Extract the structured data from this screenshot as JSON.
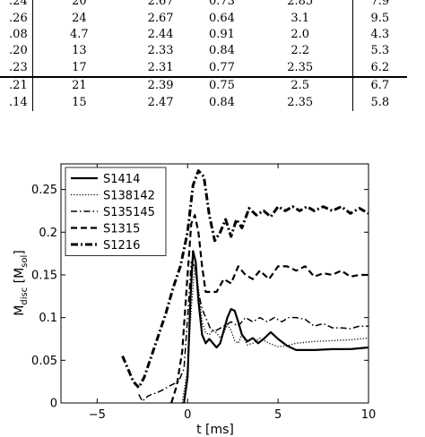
{
  "table": {
    "rows": [
      [
        ".24",
        "20",
        "2.67",
        "0.73",
        "2.85",
        "7.9"
      ],
      [
        ".26",
        "24",
        "2.67",
        "0.64",
        "3.1",
        "9.5"
      ],
      [
        ".08",
        "4.7",
        "2.44",
        "0.91",
        "2.0",
        "4.3"
      ],
      [
        ".20",
        "13",
        "2.33",
        "0.84",
        "2.2",
        "5.3"
      ],
      [
        ".23",
        "17",
        "2.31",
        "0.77",
        "2.35",
        "6.2"
      ],
      [
        ".21",
        "21",
        "2.39",
        "0.75",
        "2.5",
        "6.7"
      ],
      [
        ".14",
        "15",
        "2.47",
        "0.84",
        "2.35",
        "5.8"
      ]
    ]
  },
  "chart_data": {
    "type": "line",
    "xlabel": "t [ms]",
    "ylabel_main": "M",
    "ylabel_sub1": "disc",
    "ylabel_mid": " [M",
    "ylabel_sub2": "sol",
    "ylabel_end": "]",
    "xlim": [
      -7,
      10
    ],
    "ylim": [
      0,
      0.28
    ],
    "xticks": [
      "−5",
      "0",
      "5",
      "10"
    ],
    "xtick_values": [
      -5,
      0,
      5,
      10
    ],
    "yticks": [
      "0",
      "0.05",
      "0.1",
      "0.15",
      "0.2",
      "0.25"
    ],
    "ytick_values": [
      0,
      0.05,
      0.1,
      0.15,
      0.2,
      0.25
    ],
    "legend_position": "top-left",
    "series": [
      {
        "name": "S1414",
        "style": "solid",
        "x": [
          -0.2,
          0.0,
          0.15,
          0.3,
          0.45,
          0.6,
          0.8,
          1.0,
          1.2,
          1.4,
          1.6,
          1.8,
          2.0,
          2.2,
          2.4,
          2.6,
          2.8,
          3.0,
          3.3,
          3.6,
          3.9,
          4.2,
          4.6,
          5.0,
          5.5,
          6.0,
          7.0,
          8.0,
          9.0,
          10.0
        ],
        "y": [
          0.0,
          0.03,
          0.12,
          0.178,
          0.165,
          0.12,
          0.08,
          0.07,
          0.075,
          0.07,
          0.065,
          0.07,
          0.085,
          0.1,
          0.11,
          0.108,
          0.095,
          0.08,
          0.072,
          0.076,
          0.07,
          0.075,
          0.083,
          0.075,
          0.067,
          0.062,
          0.062,
          0.063,
          0.063,
          0.065
        ]
      },
      {
        "name": "S138142",
        "style": "dotted",
        "x": [
          -0.3,
          0.0,
          0.2,
          0.4,
          0.6,
          0.8,
          1.0,
          1.2,
          1.4,
          1.6,
          1.8,
          2.0,
          2.2,
          2.4,
          2.6,
          2.8,
          3.0,
          3.3,
          3.6,
          4.0,
          4.5,
          5.0,
          5.5,
          6.0,
          7.0,
          8.0,
          9.0,
          10.0
        ],
        "y": [
          0.0,
          0.04,
          0.11,
          0.16,
          0.135,
          0.095,
          0.082,
          0.08,
          0.085,
          0.082,
          0.076,
          0.082,
          0.092,
          0.085,
          0.073,
          0.07,
          0.08,
          0.068,
          0.07,
          0.076,
          0.07,
          0.066,
          0.067,
          0.07,
          0.072,
          0.073,
          0.074,
          0.076
        ]
      },
      {
        "name": "S135145",
        "style": "dashdot",
        "x": [
          -2.7,
          -2.5,
          -2.2,
          -2.0,
          -1.7,
          -1.4,
          -1.0,
          -0.5,
          -0.2,
          0.0,
          0.2,
          0.4,
          0.6,
          0.8,
          1.0,
          1.3,
          1.6,
          2.0,
          2.4,
          2.8,
          3.2,
          3.6,
          4.0,
          4.4,
          4.8,
          5.2,
          5.6,
          6.0,
          6.5,
          7.0,
          7.5,
          8.0,
          8.5,
          9.0,
          9.5,
          10.0
        ],
        "y": [
          0.01,
          0.002,
          0.008,
          0.01,
          0.012,
          0.015,
          0.02,
          0.025,
          0.04,
          0.1,
          0.165,
          0.16,
          0.13,
          0.11,
          0.1,
          0.085,
          0.085,
          0.09,
          0.095,
          0.09,
          0.1,
          0.095,
          0.1,
          0.095,
          0.1,
          0.095,
          0.1,
          0.1,
          0.098,
          0.09,
          0.093,
          0.088,
          0.088,
          0.087,
          0.09,
          0.09
        ]
      },
      {
        "name": "S1315",
        "style": "dashed",
        "x": [
          -0.9,
          -0.6,
          -0.3,
          0.0,
          0.2,
          0.4,
          0.6,
          0.8,
          1.0,
          1.3,
          1.6,
          2.0,
          2.4,
          2.8,
          3.2,
          3.6,
          4.0,
          4.5,
          5.0,
          5.5,
          6.0,
          6.5,
          7.0,
          7.5,
          8.0,
          8.5,
          9.0,
          9.5,
          10.0
        ],
        "y": [
          0.0,
          0.02,
          0.06,
          0.15,
          0.21,
          0.22,
          0.2,
          0.16,
          0.13,
          0.13,
          0.13,
          0.145,
          0.14,
          0.16,
          0.15,
          0.145,
          0.155,
          0.145,
          0.16,
          0.16,
          0.155,
          0.16,
          0.148,
          0.152,
          0.15,
          0.155,
          0.148,
          0.15,
          0.15
        ]
      },
      {
        "name": "S1216",
        "style": "dashdotbold",
        "x": [
          -3.6,
          -3.3,
          -3.0,
          -2.7,
          -2.4,
          -2.0,
          -1.6,
          -1.2,
          -0.8,
          -0.4,
          0.0,
          0.3,
          0.6,
          0.9,
          1.2,
          1.5,
          1.8,
          2.1,
          2.4,
          2.7,
          3.0,
          3.4,
          3.8,
          4.2,
          4.6,
          5.0,
          5.4,
          5.8,
          6.2,
          6.6,
          7.0,
          7.5,
          8.0,
          8.5,
          9.0,
          9.5,
          10.0
        ],
        "y": [
          0.055,
          0.04,
          0.025,
          0.018,
          0.03,
          0.055,
          0.08,
          0.105,
          0.135,
          0.16,
          0.2,
          0.255,
          0.272,
          0.265,
          0.22,
          0.19,
          0.2,
          0.215,
          0.195,
          0.215,
          0.205,
          0.228,
          0.22,
          0.225,
          0.218,
          0.23,
          0.225,
          0.23,
          0.225,
          0.23,
          0.225,
          0.23,
          0.225,
          0.23,
          0.222,
          0.228,
          0.222
        ]
      }
    ]
  }
}
